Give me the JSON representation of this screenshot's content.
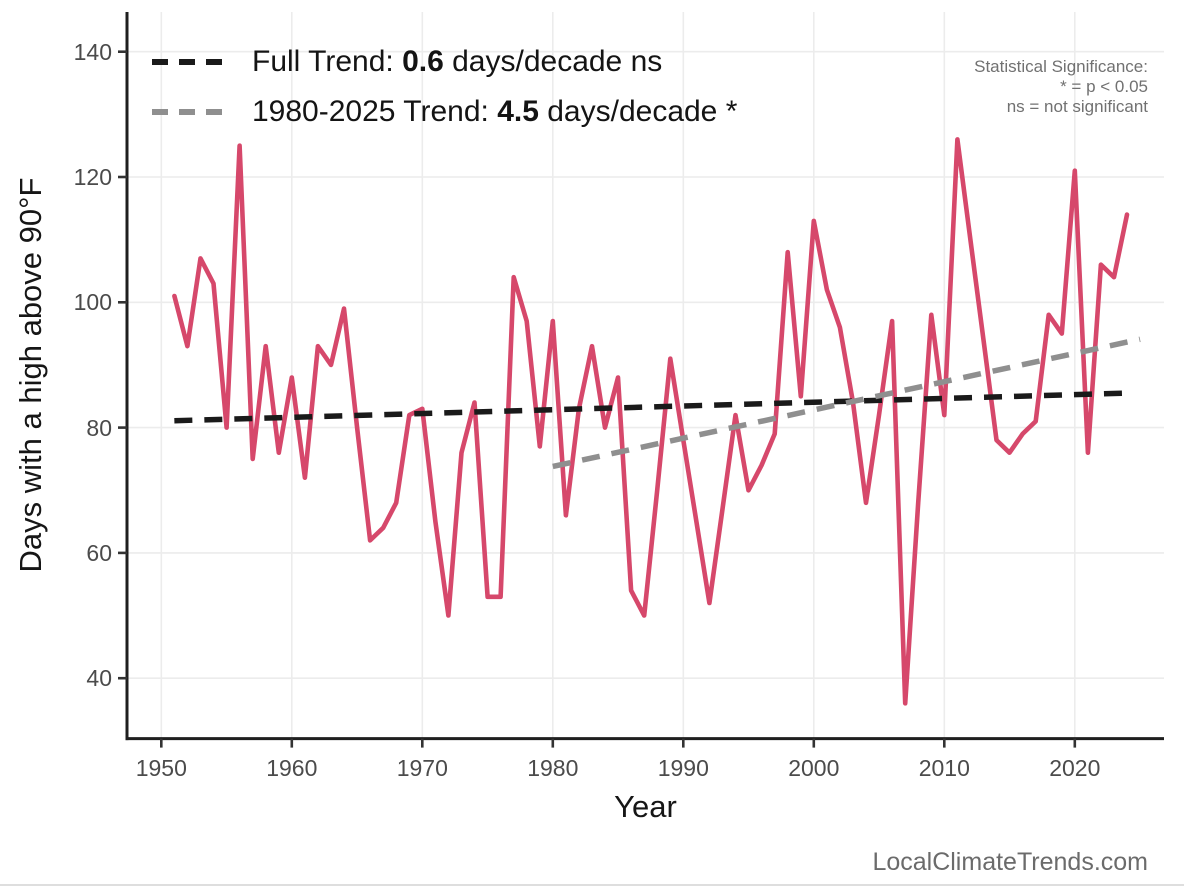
{
  "legend": {
    "full": {
      "prefix": "Full Trend: ",
      "value": "0.6",
      "suffix": " days/decade ns",
      "color": "#1a1a1a"
    },
    "recent": {
      "prefix": "1980-2025 Trend: ",
      "value": "4.5",
      "suffix": " days/decade *",
      "color": "#8f8f8f"
    }
  },
  "significance_note": {
    "line1": "Statistical Significance:",
    "line2": "* = p < 0.05",
    "line3": "ns = not significant"
  },
  "watermark": "LocalClimateTrends.com",
  "colors": {
    "background": "#ffffff",
    "gridline": "#ececec",
    "axis": "#1f1f1f",
    "tick": "#333333",
    "tick_label": "#4b4b4b",
    "series_red": "#d6486b",
    "trend_black": "#1a1a1a",
    "trend_gray": "#8f8f8f"
  },
  "chart_data": {
    "type": "line",
    "title": "",
    "xlabel": "Year",
    "ylabel": "Days with a high above 90°F",
    "grid": true,
    "legend_position": "top-left-inside",
    "x_ticks": [
      1950,
      1960,
      1970,
      1980,
      1990,
      2000,
      2010,
      2020
    ],
    "y_ticks": [
      40,
      60,
      80,
      100,
      120,
      140
    ],
    "xlim": [
      1947.4,
      2026.5
    ],
    "ylim": [
      30,
      146
    ],
    "series": [
      {
        "name": "Days with a high above 90°F",
        "color": "#d6486b",
        "x": [
          1951,
          1952,
          1953,
          1954,
          1955,
          1956,
          1957,
          1958,
          1959,
          1960,
          1961,
          1962,
          1963,
          1964,
          1965,
          1966,
          1967,
          1968,
          1969,
          1970,
          1971,
          1972,
          1973,
          1974,
          1975,
          1976,
          1977,
          1978,
          1979,
          1980,
          1981,
          1982,
          1983,
          1984,
          1985,
          1986,
          1987,
          1988,
          1989,
          1990,
          1991,
          1992,
          1993,
          1994,
          1995,
          1996,
          1997,
          1998,
          1999,
          2000,
          2001,
          2002,
          2003,
          2004,
          2005,
          2006,
          2007,
          2008,
          2009,
          2010,
          2011,
          2012,
          2013,
          2014,
          2015,
          2016,
          2017,
          2018,
          2019,
          2020,
          2021,
          2022,
          2023,
          2024
        ],
        "values": [
          101,
          93,
          107,
          103,
          80,
          125,
          75,
          93,
          76,
          88,
          72,
          93,
          90,
          99,
          80,
          62,
          64,
          68,
          82,
          83,
          65,
          50,
          76,
          84,
          53,
          53,
          104,
          97,
          77,
          97,
          66,
          83,
          93,
          80,
          88,
          54,
          50,
          70,
          91,
          78,
          65,
          52,
          67,
          82,
          70,
          74,
          79,
          108,
          85,
          113,
          102,
          96,
          84,
          68,
          82,
          97,
          36,
          68,
          98,
          82,
          126,
          110,
          94,
          78,
          76,
          79,
          81,
          98,
          95,
          121,
          76,
          106,
          104,
          114
        ]
      }
    ],
    "trend_lines": [
      {
        "name": "Full Trend",
        "slope_days_per_decade": 0.6,
        "significance": "ns",
        "color": "#1a1a1a",
        "x": [
          1951,
          2024
        ],
        "y": [
          81.1,
          85.5
        ]
      },
      {
        "name": "1980-2025 Trend",
        "slope_days_per_decade": 4.5,
        "significance": "*",
        "color": "#8f8f8f",
        "x": [
          1980,
          2025
        ],
        "y": [
          73.8,
          94.1
        ]
      }
    ]
  }
}
